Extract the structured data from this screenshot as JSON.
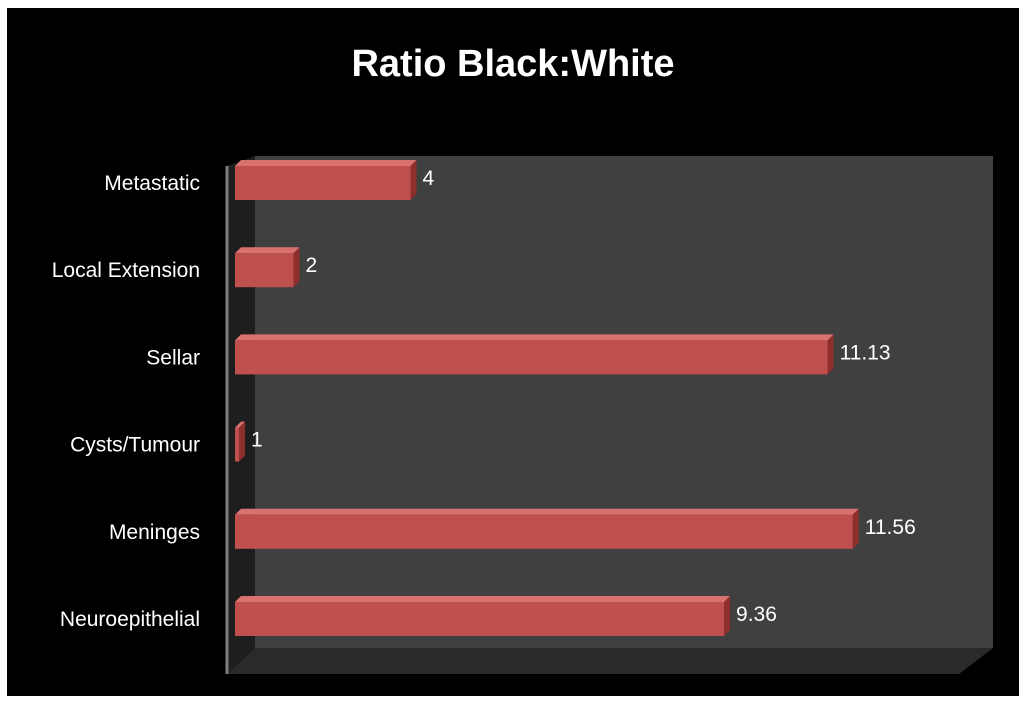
{
  "chart_data": {
    "type": "bar",
    "orientation": "horizontal",
    "title": "Ratio Black:White",
    "xlabel": "",
    "ylabel": "",
    "categories": [
      "Metastatic",
      "Local Extension",
      "Sellar",
      "Cysts/Tumour",
      "Meninges",
      "Neuroepithelial"
    ],
    "values": [
      4,
      2,
      11.13,
      1,
      11.56,
      9.36
    ],
    "value_labels": [
      "4",
      "2",
      "11.13",
      "1",
      "11.56",
      "9.36"
    ],
    "xlim": [
      1,
      12
    ],
    "grid": false,
    "legend": "none",
    "style": "3d",
    "colors": {
      "background": "#000000",
      "plot_back_wall": "#404040",
      "plot_side_wall": "#1e1e1e",
      "plot_floor": "#2a2a2a",
      "bar_front": "#c0504d",
      "bar_top": "#d9726f",
      "bar_side": "#8e2f2c",
      "text": "#ffffff"
    }
  }
}
